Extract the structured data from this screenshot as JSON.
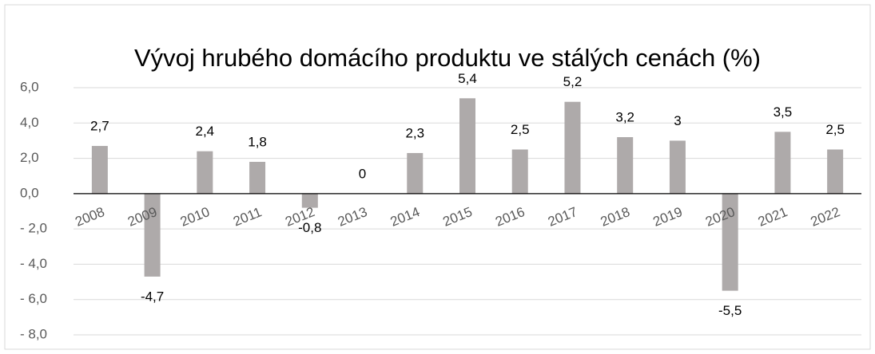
{
  "chart_data": {
    "type": "bar",
    "title": "Vývoj hrubého domácího produktu ve stálých cenách (%)",
    "categories": [
      "2008",
      "2009",
      "2010",
      "2011",
      "2012",
      "2013",
      "2014",
      "2015",
      "2016",
      "2017",
      "2018",
      "2019",
      "2020",
      "2021",
      "2022"
    ],
    "values": [
      2.7,
      -4.7,
      2.4,
      1.8,
      -0.8,
      0,
      2.3,
      5.4,
      2.5,
      5.2,
      3.2,
      3,
      -5.5,
      3.5,
      2.5
    ],
    "value_labels": [
      "2,7",
      "-4,7",
      "2,4",
      "1,8",
      "-0,8",
      "0",
      "2,3",
      "5,4",
      "2,5",
      "5,2",
      "3,2",
      "3",
      "-5,5",
      "3,5",
      "2,5"
    ],
    "color": "#aeaaaa",
    "ylim": [
      -8,
      6
    ],
    "yticks": [
      {
        "value": 6,
        "label": "6,0"
      },
      {
        "value": 4,
        "label": "4,0"
      },
      {
        "value": 2,
        "label": "2,0"
      },
      {
        "value": 0,
        "label": "0,0"
      },
      {
        "value": -2,
        "label": "- 2,0"
      },
      {
        "value": -4,
        "label": "- 4,0"
      },
      {
        "value": -6,
        "label": "- 6,0"
      },
      {
        "value": -8,
        "label": "- 8,0"
      }
    ],
    "grid": true
  }
}
